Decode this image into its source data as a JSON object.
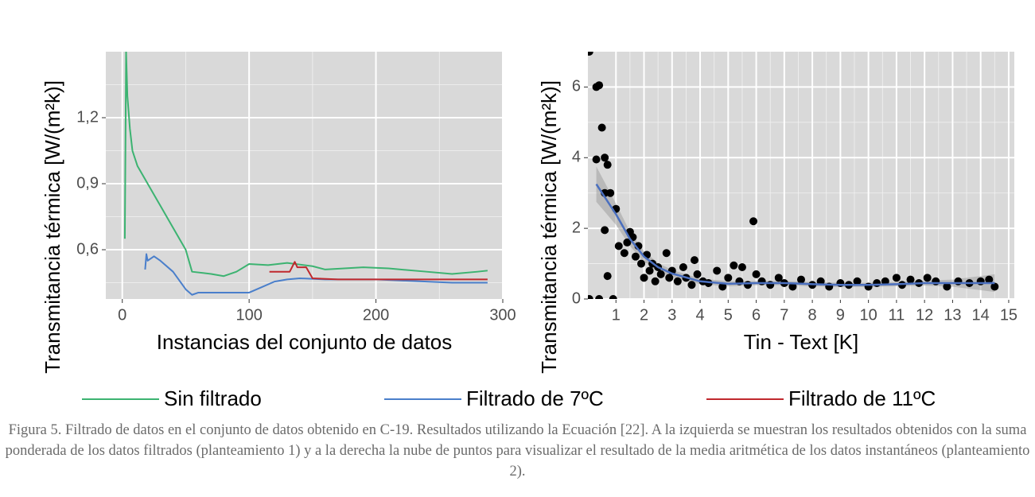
{
  "chart_data": [
    {
      "type": "line",
      "ylabel": "Transmitancia térmica [W/(m²k)]",
      "xlabel": "Instancias del conjunto de datos",
      "xlim": [
        -13,
        300
      ],
      "ylim": [
        0.376,
        1.5
      ],
      "xticks": [
        0,
        100,
        200,
        300
      ],
      "yticks": [
        {
          "value": 0.6,
          "label": "0,6"
        },
        {
          "value": 0.9,
          "label": "0,9"
        },
        {
          "value": 1.2,
          "label": "1,2"
        }
      ],
      "xminorticks": [
        50,
        150,
        250
      ],
      "yminorticks": [
        0.45,
        0.75,
        1.05,
        1.35
      ],
      "grid": true,
      "series": [
        {
          "name": "Sin filtrado",
          "color": "#3cb371",
          "x": [
            2,
            3,
            4,
            6,
            8,
            12,
            15,
            20,
            30,
            40,
            50,
            55,
            70,
            80,
            90,
            100,
            115,
            130,
            150,
            160,
            190,
            210,
            240,
            260,
            280,
            288
          ],
          "values": [
            0.65,
            1.5,
            1.3,
            1.15,
            1.05,
            0.98,
            0.95,
            0.9,
            0.8,
            0.7,
            0.6,
            0.5,
            0.49,
            0.48,
            0.5,
            0.535,
            0.53,
            0.54,
            0.525,
            0.51,
            0.52,
            0.515,
            0.5,
            0.49,
            0.5,
            0.505
          ]
        },
        {
          "name": "Filtrado de 7ºC",
          "color": "#4a7fcb",
          "x": [
            18,
            19,
            20,
            25,
            30,
            40,
            50,
            55,
            60,
            100,
            110,
            120,
            130,
            140,
            160,
            200,
            240,
            260,
            288
          ],
          "values": [
            0.51,
            0.58,
            0.55,
            0.57,
            0.55,
            0.5,
            0.42,
            0.395,
            0.405,
            0.405,
            0.43,
            0.455,
            0.465,
            0.47,
            0.465,
            0.465,
            0.455,
            0.45,
            0.45
          ]
        },
        {
          "name": "Filtrado de 11ºC",
          "color": "#c0282d",
          "x": [
            116,
            132,
            136,
            138,
            145,
            150,
            170,
            288
          ],
          "values": [
            0.5,
            0.5,
            0.545,
            0.52,
            0.52,
            0.47,
            0.465,
            0.465
          ]
        }
      ]
    },
    {
      "type": "scatter",
      "ylabel": "Transmitancia térmica [W/(m²k)]",
      "xlabel": "Tin - Text [K]",
      "xlim": [
        0,
        15.2
      ],
      "ylim": [
        0,
        7
      ],
      "xticks": [
        1,
        2,
        3,
        4,
        5,
        6,
        7,
        8,
        9,
        10,
        11,
        12,
        13,
        14,
        15
      ],
      "yticks": [
        0,
        2,
        4,
        6
      ],
      "xminorticks": [
        1.5,
        2.5,
        3.5,
        4.5,
        5.5,
        6.5,
        7.5,
        8.5,
        9.5,
        10.5,
        11.5,
        12.5,
        13.5,
        14.5
      ],
      "yminorticks": [
        1,
        3,
        5
      ],
      "grid": true,
      "color": "#000000",
      "x": [
        0.05,
        0.05,
        0.3,
        0.4,
        0.3,
        0.5,
        0.6,
        0.7,
        0.6,
        0.8,
        0.6,
        0.7,
        0.9,
        0.4,
        1.0,
        1.1,
        1.3,
        1.4,
        1.5,
        1.6,
        1.7,
        1.8,
        1.9,
        2.0,
        2.1,
        2.2,
        2.3,
        2.4,
        2.5,
        2.6,
        2.8,
        2.9,
        3.0,
        3.2,
        3.4,
        3.5,
        3.7,
        3.8,
        3.9,
        4.1,
        4.3,
        4.6,
        4.8,
        5.0,
        5.2,
        5.4,
        5.5,
        5.7,
        5.9,
        6.0,
        6.2,
        6.5,
        6.8,
        7.0,
        7.3,
        7.6,
        8.0,
        8.3,
        8.6,
        9.0,
        9.3,
        9.6,
        10.0,
        10.3,
        10.6,
        11.0,
        11.2,
        11.5,
        11.8,
        12.1,
        12.4,
        12.8,
        13.2,
        13.6,
        14.0,
        14.3,
        14.5
      ],
      "values": [
        7.0,
        0,
        6.0,
        6.05,
        3.95,
        4.85,
        4.0,
        3.8,
        3.0,
        3.0,
        1.95,
        0.65,
        0,
        0,
        2.55,
        1.5,
        1.3,
        1.6,
        1.9,
        1.75,
        1.2,
        1.5,
        1.0,
        0.6,
        1.25,
        0.8,
        1.0,
        0.5,
        0.9,
        0.7,
        1.3,
        0.6,
        0.8,
        0.5,
        0.9,
        0.6,
        0.4,
        1.1,
        0.7,
        0.5,
        0.45,
        0.8,
        0.35,
        0.6,
        0.95,
        0.5,
        0.9,
        0.4,
        2.2,
        0.7,
        0.5,
        0.4,
        0.6,
        0.45,
        0.35,
        0.55,
        0.4,
        0.5,
        0.35,
        0.45,
        0.4,
        0.5,
        0.35,
        0.45,
        0.5,
        0.6,
        0.4,
        0.55,
        0.45,
        0.6,
        0.5,
        0.35,
        0.5,
        0.45,
        0.5,
        0.55,
        0.35
      ],
      "smooth": {
        "color": "#4a6fbf",
        "x": [
          0.3,
          1,
          1.5,
          2,
          2.5,
          3,
          4,
          5,
          6,
          7,
          8,
          9,
          10,
          11,
          12,
          13,
          14.5
        ],
        "values": [
          3.25,
          2.4,
          1.7,
          1.2,
          0.9,
          0.72,
          0.5,
          0.43,
          0.45,
          0.45,
          0.42,
          0.4,
          0.4,
          0.42,
          0.45,
          0.45,
          0.45
        ],
        "lower": [
          2.75,
          2.1,
          1.5,
          1.05,
          0.78,
          0.62,
          0.42,
          0.36,
          0.39,
          0.39,
          0.36,
          0.34,
          0.34,
          0.36,
          0.38,
          0.35,
          0.2
        ],
        "upper": [
          3.75,
          2.7,
          1.9,
          1.35,
          1.02,
          0.82,
          0.58,
          0.5,
          0.51,
          0.51,
          0.48,
          0.46,
          0.46,
          0.48,
          0.52,
          0.55,
          0.7
        ]
      }
    }
  ],
  "caption": "Figura 5. Filtrado de datos en el conjunto de datos obtenido en C-19. Resultados utilizando la Ecuación [22]. A la izquierda se muestran los resultados obtenidos con la suma ponderada de los datos filtrados (planteamiento 1) y a la derecha la nube de puntos para visualizar el resultado de la media aritmética de los datos instantáneos (planteamiento 2)."
}
